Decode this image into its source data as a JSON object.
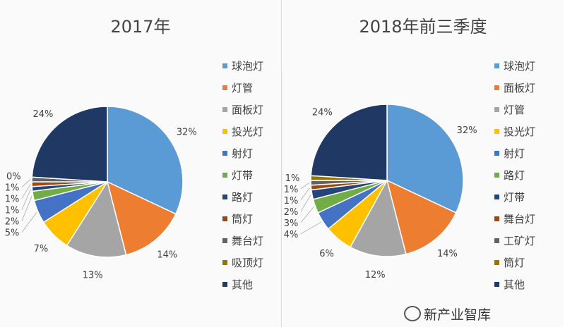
{
  "chart_data": [
    {
      "type": "pie",
      "title": "2017年",
      "legend_placement": "right",
      "categories": [
        "球泡灯",
        "灯管",
        "面板灯",
        "投光灯",
        "射灯",
        "灯带",
        "路灯",
        "筒灯",
        "舞台灯",
        "吸顶灯",
        "其他"
      ],
      "values": [
        32,
        14,
        13,
        7,
        5,
        2,
        1,
        1,
        1,
        0,
        24
      ],
      "colors": [
        "#5b9bd5",
        "#ed7d31",
        "#a5a5a5",
        "#ffc000",
        "#4472c4",
        "#70ad47",
        "#264478",
        "#9e480e",
        "#636363",
        "#997300",
        "#1f3864"
      ]
    },
    {
      "type": "pie",
      "title": "2018年前三季度",
      "legend_placement": "right",
      "categories": [
        "球泡灯",
        "面板灯",
        "灯管",
        "投光灯",
        "射灯",
        "路灯",
        "灯带",
        "舞台灯",
        "工矿灯",
        "筒灯",
        "其他"
      ],
      "values": [
        32,
        14,
        12,
        6,
        4,
        3,
        2,
        1,
        1,
        1,
        24
      ],
      "colors": [
        "#5b9bd5",
        "#ed7d31",
        "#a5a5a5",
        "#ffc000",
        "#4472c4",
        "#70ad47",
        "#264478",
        "#9e480e",
        "#636363",
        "#997300",
        "#1f3864"
      ]
    }
  ],
  "watermark": "新产业智库"
}
